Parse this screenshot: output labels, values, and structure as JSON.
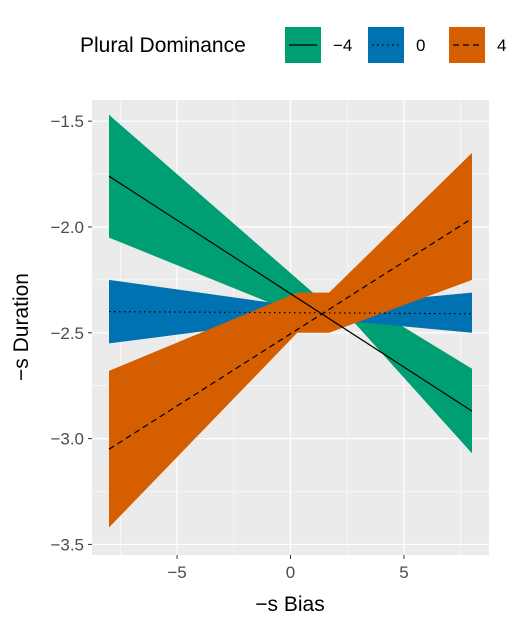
{
  "chart_data": {
    "type": "line",
    "xlabel": "−s Bias",
    "ylabel": "−s Duration",
    "xlim": [
      -8.75,
      8.75
    ],
    "ylim": [
      -3.55,
      -1.4
    ],
    "x_ticks": [
      -5,
      0,
      5
    ],
    "x_tick_labels": [
      "−5",
      "0",
      "5"
    ],
    "y_ticks": [
      -1.5,
      -2.0,
      -2.5,
      -3.0,
      -3.5
    ],
    "y_tick_labels": [
      "−1.5",
      "−2.0",
      "−2.5",
      "−3.0",
      "−3.5"
    ],
    "grid": true,
    "legend": {
      "title": "Plural Dominance",
      "position": "top"
    },
    "x_range": [
      -8,
      8
    ],
    "series": [
      {
        "name": "−4",
        "color": "#009E73",
        "line_style": "solid",
        "x": [
          -8,
          8
        ],
        "fit": [
          -1.76,
          -2.87
        ],
        "lower": [
          -2.05,
          -3.07
        ],
        "upper": [
          -1.47,
          -2.67
        ],
        "band_waist": {
          "x": [
            1.2,
            2.8
          ],
          "lower": [
            -2.45,
            -2.45
          ],
          "upper": [
            -2.33,
            -2.33
          ]
        }
      },
      {
        "name": "0",
        "color": "#0072B2",
        "line_style": "dotted",
        "x": [
          -8,
          8
        ],
        "fit": [
          -2.4,
          -2.41
        ],
        "lower": [
          -2.55,
          -2.5
        ],
        "upper": [
          -2.25,
          -2.31
        ],
        "band_waist": {
          "x": [
            0.0,
            2.0
          ],
          "lower": [
            -2.44,
            -2.44
          ],
          "upper": [
            -2.37,
            -2.37
          ]
        }
      },
      {
        "name": "4",
        "color": "#D55E00",
        "line_style": "dashed",
        "x": [
          -8,
          8
        ],
        "fit": [
          -3.05,
          -1.96
        ],
        "lower": [
          -3.42,
          -2.25
        ],
        "upper": [
          -2.68,
          -1.65
        ],
        "band_waist": {
          "x": [
            0.3,
            1.7
          ],
          "lower": [
            -2.5,
            -2.5
          ],
          "upper": [
            -2.31,
            -2.31
          ]
        }
      }
    ]
  }
}
